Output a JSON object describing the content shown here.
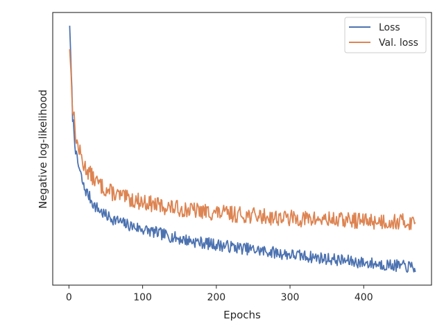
{
  "chart_data": {
    "type": "line",
    "title": "",
    "xlabel": "Epochs",
    "ylabel": "Negative log-likelihood",
    "xlim": [
      -22,
      492
    ],
    "ylim": [
      0,
      1
    ],
    "x_ticks": [
      {
        "value": 0,
        "label": "0"
      },
      {
        "value": 100,
        "label": "100"
      },
      {
        "value": 200,
        "label": "200"
      },
      {
        "value": 300,
        "label": "300"
      },
      {
        "value": 400,
        "label": "400"
      }
    ],
    "y_ticks_shown": false,
    "grid": false,
    "legend_position": "upper right",
    "series": [
      {
        "name": "Loss",
        "color": "#4c72b0",
        "noise": 0.022,
        "seed": 7,
        "x": [
          1,
          5,
          10,
          20,
          35,
          50,
          75,
          100,
          125,
          150,
          175,
          200,
          250,
          300,
          350,
          400,
          450,
          470
        ],
        "y": [
          0.955,
          0.62,
          0.47,
          0.36,
          0.29,
          0.255,
          0.225,
          0.205,
          0.188,
          0.17,
          0.158,
          0.148,
          0.13,
          0.112,
          0.097,
          0.082,
          0.07,
          0.065
        ]
      },
      {
        "name": "Val. loss",
        "color": "#dd8452",
        "noise": 0.03,
        "seed": 13,
        "x": [
          1,
          5,
          10,
          20,
          35,
          50,
          75,
          100,
          125,
          150,
          175,
          200,
          250,
          300,
          350,
          400,
          450,
          470
        ],
        "y": [
          0.87,
          0.66,
          0.53,
          0.44,
          0.385,
          0.35,
          0.32,
          0.305,
          0.29,
          0.28,
          0.272,
          0.265,
          0.255,
          0.245,
          0.24,
          0.236,
          0.232,
          0.23
        ]
      }
    ]
  }
}
